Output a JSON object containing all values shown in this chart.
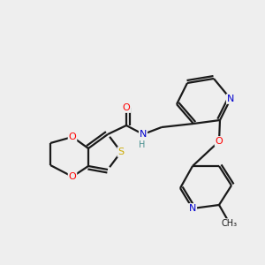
{
  "background_color": "#eeeeee",
  "bond_color": "#1a1a1a",
  "atom_colors": {
    "O": "#ff0000",
    "N": "#0000cc",
    "S": "#ccaa00",
    "H": "#4a9090",
    "C": "#1a1a1a"
  },
  "figsize": [
    3.0,
    3.0
  ],
  "dpi": 100
}
